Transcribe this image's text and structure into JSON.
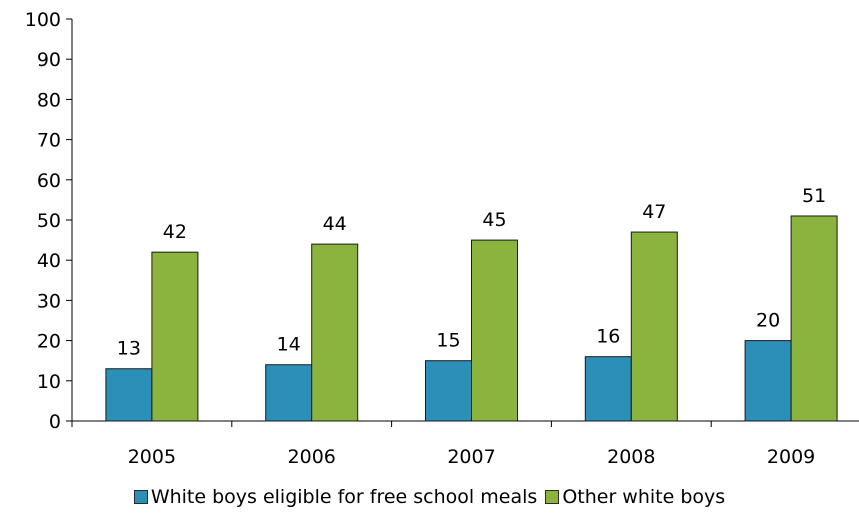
{
  "chart_data": {
    "type": "bar",
    "categories": [
      "2005",
      "2006",
      "2007",
      "2008",
      "2009"
    ],
    "series": [
      {
        "name": "White boys eligible for free school meals",
        "values": [
          13,
          14,
          15,
          16,
          20
        ],
        "color": "#2b8fb8"
      },
      {
        "name": "Other white boys",
        "values": [
          42,
          44,
          45,
          47,
          51
        ],
        "color": "#8bb43f"
      }
    ],
    "ylim": [
      0,
      100
    ],
    "yticks": [
      0,
      10,
      20,
      30,
      40,
      50,
      60,
      70,
      80,
      90,
      100
    ],
    "title": "",
    "xlabel": "",
    "ylabel": "",
    "grid": false,
    "legend_position": "bottom"
  }
}
